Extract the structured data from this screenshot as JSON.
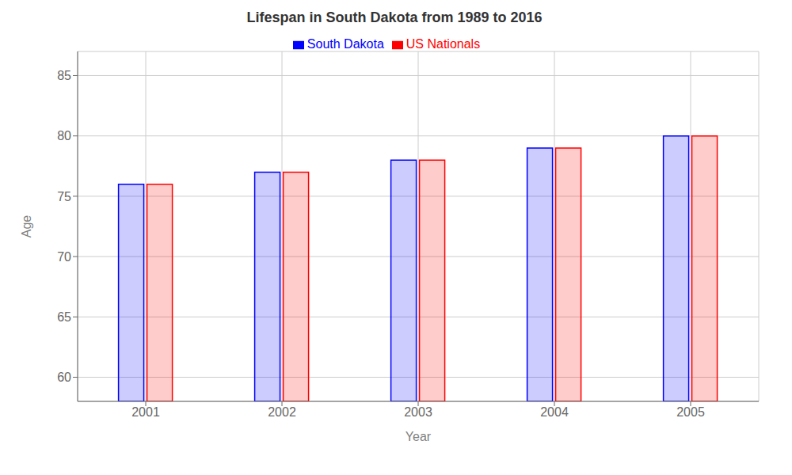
{
  "chart_data": {
    "type": "bar",
    "title": "Lifespan in South Dakota from 1989 to 2016",
    "x_label": "Year",
    "y_label": "Age",
    "categories": [
      "2001",
      "2002",
      "2003",
      "2004",
      "2005"
    ],
    "series": [
      {
        "name": "South Dakota",
        "color": "#0000ff",
        "values": [
          76.0,
          77.0,
          78.0,
          79.0,
          80.0
        ]
      },
      {
        "name": "US Nationals",
        "color": "#ff0000",
        "values": [
          76.0,
          77.0,
          78.0,
          79.0,
          80.0
        ]
      }
    ],
    "ylim": [
      58,
      87
    ],
    "yticks": [
      60,
      65,
      70,
      75,
      80,
      85
    ],
    "grid": true,
    "legend": "top"
  }
}
